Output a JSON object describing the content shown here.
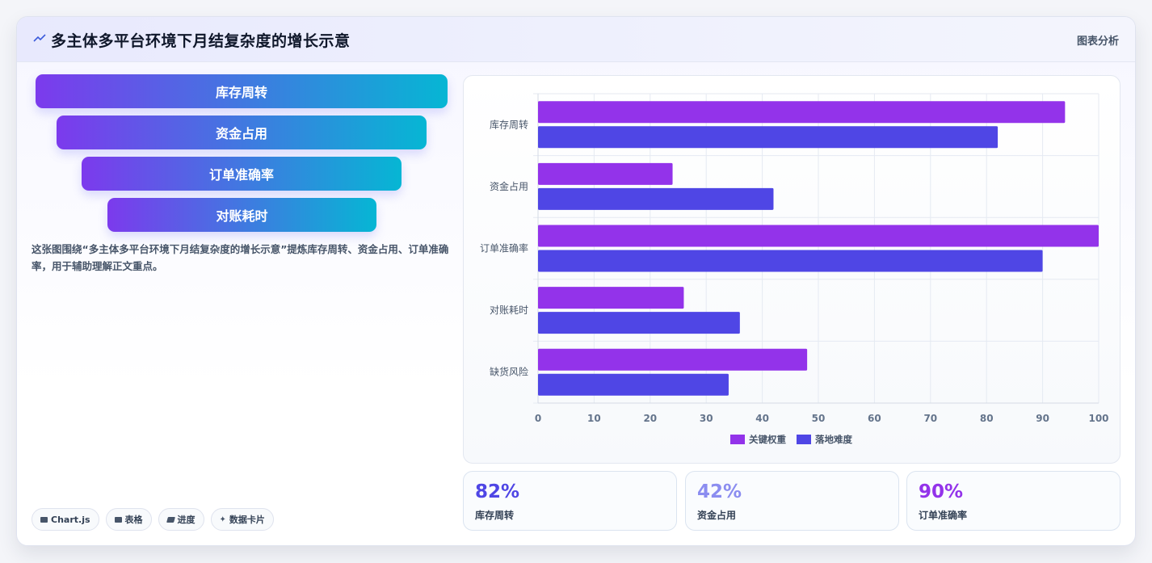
{
  "header": {
    "title": "多主体多平台环境下月结复杂度的增长示意",
    "link_label": "图表分析"
  },
  "funnel": {
    "steps": [
      "库存周转",
      "资金占用",
      "订单准确率",
      "对账耗时"
    ]
  },
  "description": "这张图围绕“多主体多平台环境下月结复杂度的增长示意”提炼库存周转、资金占用、订单准确率，用于辅助理解正文重点。",
  "tags": [
    {
      "icon": "chart-icon",
      "label": "Chart.js"
    },
    {
      "icon": "table-icon",
      "label": "表格"
    },
    {
      "icon": "progress-icon",
      "label": "进度"
    },
    {
      "icon": "sparkle-icon",
      "label": "数据卡片"
    }
  ],
  "stats": [
    {
      "value": "82%",
      "label": "库存周转",
      "color": "#4f46e5"
    },
    {
      "value": "42%",
      "label": "资金占用",
      "color": "#8b8df0"
    },
    {
      "value": "90%",
      "label": "订单准确率",
      "color": "#9333ea"
    }
  ],
  "chart_data": {
    "type": "bar",
    "orientation": "horizontal",
    "categories": [
      "库存周转",
      "资金占用",
      "订单准确率",
      "对账耗时",
      "缺货风险"
    ],
    "series": [
      {
        "name": "关键权重",
        "values": [
          94,
          24,
          100,
          26,
          48
        ],
        "color": "#9333ea"
      },
      {
        "name": "落地难度",
        "values": [
          82,
          42,
          90,
          36,
          34
        ],
        "color": "#4f46e5"
      }
    ],
    "xlim": [
      0,
      100
    ],
    "xticks": [
      0,
      10,
      20,
      30,
      40,
      50,
      60,
      70,
      80,
      90,
      100
    ],
    "grid": true,
    "legend_position": "bottom"
  }
}
